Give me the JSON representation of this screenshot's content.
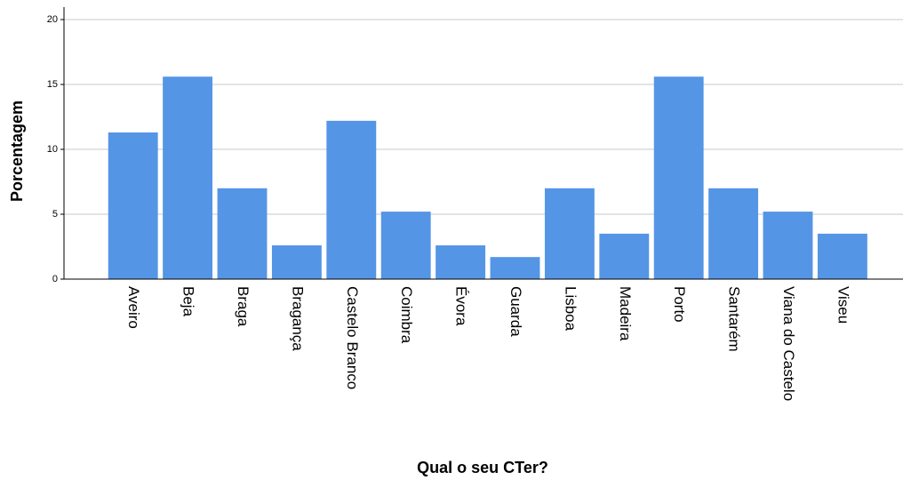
{
  "chart_data": {
    "type": "bar",
    "x_label": "Qual o seu CTer?",
    "y_label": "Porcentagem",
    "categories": [
      "Aveiro",
      "Beja",
      "Braga",
      "Bragança",
      "Castelo Branco",
      "Coimbra",
      "Évora",
      "Guarda",
      "Lisboa",
      "Madeira",
      "Porto",
      "Santarém",
      "Viana do Castelo",
      "Viseu"
    ],
    "values": [
      11.3,
      15.6,
      7.0,
      2.6,
      12.2,
      5.2,
      2.6,
      1.7,
      7.0,
      3.5,
      15.6,
      7.0,
      5.2,
      3.5
    ],
    "color": "#5595e6",
    "ylim": [
      0,
      20
    ],
    "yticks": [
      0,
      5,
      10,
      15,
      20
    ],
    "grid": true
  }
}
